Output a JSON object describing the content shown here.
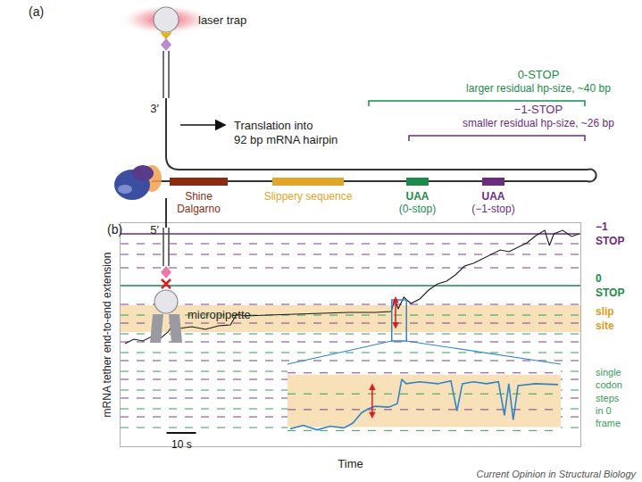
{
  "panel_a": {
    "label": "(a)",
    "laser_trap": "laser trap",
    "micropipette": "micropipette",
    "end_3": "3′",
    "end_5": "5′",
    "translation_lines": [
      "Translation into",
      "92 bp mRNA hairpin"
    ],
    "elements": [
      {
        "label_lines": [
          "Shine",
          "Dalgarno"
        ],
        "color": "#8b2c10"
      },
      {
        "label_lines": [
          "Slippery sequence"
        ],
        "color": "#e3a42a"
      },
      {
        "label_lines": [
          "UAA",
          "(0-stop)"
        ],
        "color": "#1d8a4c"
      },
      {
        "label_lines": [
          "UAA",
          "(−1-stop)"
        ],
        "color": "#6b2d7d"
      }
    ],
    "brackets": [
      {
        "title": "0-STOP",
        "subtitle": "larger residual hp-size, ~40 bp",
        "color": "#1d8a4c"
      },
      {
        "title": "−1-STOP",
        "subtitle": "smaller residual hp-size, ~26 bp",
        "color": "#6b2d7d"
      }
    ]
  },
  "chart_data": {
    "type": "line",
    "label": "(b)",
    "x_label": "Time",
    "y_label": "mRNA tether end-to-end extension",
    "xlim": [
      0,
      156
    ],
    "ylim": [
      0,
      250
    ],
    "tick_labels": false,
    "grid": false,
    "color": "#1a1a1a",
    "x": [
      1.5,
      4.5,
      7.6,
      10.6,
      13.6,
      16.1,
      17.3,
      19.7,
      24.2,
      28.8,
      33.3,
      37.3,
      39.4,
      42.4,
      50,
      59.1,
      68.2,
      77.3,
      86.4,
      91.8,
      93,
      94.2,
      96.1,
      98.5,
      101.5,
      104.5,
      107.6,
      110.6,
      113.6,
      116.7,
      119.7,
      122.7,
      125.8,
      128.8,
      131.8,
      134.8,
      137.9,
      140.9,
      143.9,
      145.5,
      147,
      150,
      153,
      155.5
    ],
    "values": [
      115,
      120,
      118,
      123,
      121,
      128,
      134,
      132,
      134,
      131,
      135,
      136,
      148,
      146,
      147,
      148,
      149,
      150,
      150,
      151,
      164,
      154,
      167,
      160,
      165,
      175,
      182,
      185,
      192,
      202,
      205,
      210,
      215,
      220,
      218,
      223,
      228,
      236,
      242,
      225,
      238,
      242,
      235,
      238
    ],
    "zero_frame_steps": {
      "color": "#3a9a5a",
      "line_style": "dashed",
      "values": [
        21,
        42,
        63,
        84,
        105,
        126,
        147
      ]
    },
    "minus1_frame_steps": {
      "color": "#7b3f8f",
      "line_style": "dashed",
      "values": [
        33,
        54,
        75,
        96,
        117,
        138,
        159,
        200,
        215,
        227
      ]
    },
    "stops": [
      {
        "label_lines": [
          "−1",
          "STOP"
        ],
        "value": 238,
        "color": "#6b2d7d",
        "line_style": "solid"
      },
      {
        "label_lines": [
          "0",
          "STOP"
        ],
        "value": 180,
        "color": "#1d8a4c",
        "line_style": "solid"
      }
    ],
    "slip_site": {
      "label_lines": [
        "slip",
        "site"
      ],
      "range": [
        128,
        158
      ],
      "color": "#f2c77e"
    },
    "step_note": {
      "label_lines": [
        "single",
        "codon",
        "steps",
        "in 0",
        "frame"
      ],
      "color": "#3a9a5a"
    },
    "scale_bar": {
      "length": 10,
      "label": "10 s"
    },
    "arrow": {
      "x": 93.3,
      "from": 130,
      "to": 168,
      "color": "#d42020"
    },
    "inset": {
      "xlim": [
        92,
        97
      ],
      "ylim": [
        118,
        164
      ],
      "color": "#2f86c9",
      "x": [
        92.05,
        92.29,
        92.54,
        92.78,
        93.03,
        93.19,
        93.36,
        93.47,
        93.6,
        93.85,
        94.01,
        94.09,
        94.17,
        94.42,
        94.75,
        94.99,
        95.1,
        95.2,
        95.4,
        95.64,
        95.86,
        95.97,
        96.05,
        96.13,
        96.22,
        96.54,
        96.95
      ],
      "values": [
        127.0,
        129.0,
        126.4,
        128.5,
        127.5,
        130.1,
        136.3,
        138.3,
        139.9,
        139.4,
        141.4,
        155.4,
        152.8,
        153.9,
        152.8,
        154.4,
        137.3,
        152.8,
        153.9,
        152.8,
        153.9,
        134.7,
        152.8,
        132.1,
        151.8,
        152.8,
        152.3
      ],
      "arrow": {
        "x": 93.55,
        "from": 132,
        "to": 153
      }
    }
  },
  "credit": "Current Opinion in Structural Biology"
}
